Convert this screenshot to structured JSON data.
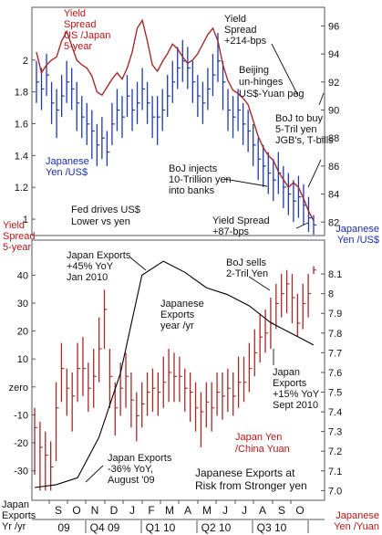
{
  "colors": {
    "background": "#ffffff",
    "frame": "#555555",
    "red_series": "#a52a2a",
    "blue_series": "#1f3aa8",
    "black_series": "#000000",
    "red_label": "#b01818",
    "blue_label": "#1a2ea0",
    "annotation": "#111111"
  },
  "chart_data": [
    {
      "type": "line",
      "panel": "top",
      "left_axis": {
        "ticks": [
          "1",
          "1.2",
          "1.4",
          "1.6",
          "1.8",
          "2"
        ],
        "ylim": [
          0.92,
          2.32
        ]
      },
      "right_axis": {
        "ticks": [
          "82",
          "84",
          "86",
          "88",
          "90",
          "92",
          "94",
          "96"
        ],
        "ylim": [
          81.3,
          97.2
        ]
      },
      "left_axis_label": [
        "Yield",
        "Spread",
        "5-year"
      ],
      "right_axis_label": [
        "Japanese",
        "Yen /US$"
      ],
      "series": [
        {
          "name": "Yield Spread US /Japan 5-year",
          "axis": "left",
          "color_key": "red_series",
          "x": [
            0,
            1,
            2,
            3,
            4,
            5,
            6,
            7,
            8,
            9,
            10,
            11,
            12,
            13,
            14,
            15,
            16,
            17,
            18,
            19,
            20,
            21,
            22,
            23,
            24,
            25,
            26,
            27,
            28,
            29,
            30,
            31,
            32,
            33,
            34,
            35,
            36,
            37,
            38,
            39,
            40,
            41,
            42,
            43,
            44,
            45,
            46,
            47,
            48,
            49,
            50,
            51,
            52,
            53,
            54,
            55
          ],
          "values": [
            2.05,
            1.92,
            1.97,
            2.0,
            2.02,
            2.12,
            2.18,
            2.09,
            2.0,
            1.97,
            1.95,
            1.9,
            1.8,
            1.78,
            1.83,
            1.88,
            1.92,
            1.88,
            1.95,
            2.05,
            2.2,
            2.25,
            2.12,
            1.97,
            1.93,
            1.99,
            2.04,
            2.1,
            2.07,
            2.02,
            1.98,
            2.0,
            2.04,
            2.1,
            2.16,
            2.2,
            2.12,
            1.97,
            1.87,
            1.81,
            1.79,
            1.76,
            1.72,
            1.62,
            1.52,
            1.45,
            1.4,
            1.37,
            1.3,
            1.25,
            1.2,
            1.23,
            1.2,
            1.13,
            1.05,
            0.99
          ]
        },
        {
          "name": "Japanese Yen /US$",
          "axis": "right",
          "color_key": "blue_series",
          "style": "hlc_bars",
          "x": [
            0,
            1,
            2,
            3,
            4,
            5,
            6,
            7,
            8,
            9,
            10,
            11,
            12,
            13,
            14,
            15,
            16,
            17,
            18,
            19,
            20,
            21,
            22,
            23,
            24,
            25,
            26,
            27,
            28,
            29,
            30,
            31,
            32,
            33,
            34,
            35,
            36,
            37,
            38,
            39,
            40,
            41,
            42,
            43,
            44,
            45,
            46,
            47,
            48,
            49,
            50,
            51,
            52,
            53,
            54,
            55
          ],
          "close": [
            92,
            91.5,
            92.5,
            90.5,
            90,
            91,
            92,
            91.5,
            90.5,
            89.5,
            89,
            88.5,
            87.5,
            88,
            87,
            89,
            90,
            89.5,
            91,
            90,
            90.5,
            91.5,
            90.5,
            89.5,
            89.5,
            90,
            91,
            92,
            93,
            93.5,
            93,
            92,
            91,
            90.5,
            91.5,
            92.5,
            93.5,
            92,
            90,
            89.5,
            90,
            89,
            88.5,
            87.5,
            86.5,
            86,
            85.5,
            85,
            85.5,
            84.5,
            84,
            83.5,
            83.8,
            83.2,
            82.3,
            81.8
          ],
          "low": [
            90.5,
            90,
            91,
            89,
            88,
            89.5,
            90.5,
            90,
            88.5,
            88,
            87.5,
            86.5,
            86,
            86.5,
            86,
            87.5,
            88.5,
            88,
            89.5,
            88.5,
            89,
            90,
            89,
            88,
            87.5,
            88.5,
            89.5,
            90.5,
            91.5,
            92,
            91.5,
            90.5,
            89.5,
            89,
            90,
            91,
            92,
            90,
            88.5,
            88,
            88.5,
            87.5,
            87,
            86,
            85,
            84.5,
            84,
            83.5,
            84,
            83,
            82.5,
            82,
            82.3,
            81.8,
            81.3,
            81.1
          ],
          "high": [
            93.5,
            93,
            94,
            92,
            91.5,
            92.5,
            93.5,
            93,
            92,
            91,
            90.5,
            90,
            89,
            89.5,
            88.5,
            90.5,
            91.5,
            91,
            92.5,
            91.5,
            92,
            93,
            92,
            91,
            91,
            91.5,
            92.5,
            93.5,
            94.5,
            95,
            94.5,
            93.5,
            92.5,
            92,
            93,
            94,
            95.5,
            93.5,
            91.5,
            91,
            91.5,
            90.5,
            90,
            89,
            88,
            87.5,
            87,
            86.5,
            87,
            86,
            85.5,
            85,
            85.3,
            84.7,
            83.8,
            82.5
          ]
        }
      ],
      "annotations": [
        [
          "Yield",
          "Spread",
          "US /Japan",
          "5-year"
        ],
        [
          "Yield",
          "Spread",
          "+214-bps"
        ],
        [
          "Beijing",
          "un-hinges",
          "US$-Yuan peg"
        ],
        [
          "BoJ to buy",
          "5-Tril yen",
          "JGB's, T-bills"
        ],
        [
          "BoJ injects",
          "10-Trillion yen",
          "into banks"
        ],
        [
          "Japanese",
          "Yen /US$"
        ],
        [
          "Fed drives US$",
          "Lower vs yen"
        ],
        [
          "Yield Spread",
          "+87-bps"
        ]
      ]
    },
    {
      "type": "line",
      "panel": "bottom",
      "left_axis": {
        "ticks": [
          "-30",
          "-20",
          "-10",
          "zero",
          "10",
          "20",
          "30",
          "40"
        ],
        "ylim": [
          -36,
          46
        ]
      },
      "right_axis": {
        "ticks": [
          "7.0",
          "7.1",
          "7.2",
          "7.3",
          "7.4",
          "7.5",
          "7.6",
          "7.7",
          "7.8",
          "7.9",
          "8",
          "8.1"
        ],
        "ylim": [
          6.96,
          8.17
        ]
      },
      "left_axis_label": [
        "Japan",
        "Exports",
        "Yr /yr"
      ],
      "right_axis_label": [
        "Japanese",
        "Yen /Yuan"
      ],
      "x_ticks": [
        "S",
        "O",
        "N",
        "D",
        "J",
        "F",
        "M",
        "A",
        "M",
        "J",
        "J",
        "A",
        "S",
        "O"
      ],
      "x_groups": [
        "09",
        "Q4 09",
        "Q1 10",
        "Q2 10",
        "Q3 10"
      ],
      "series": [
        {
          "name": "Japanese Exports year /yr",
          "axis": "left",
          "color_key": "black_series",
          "x": [
            0,
            1,
            2,
            3,
            4,
            5,
            6,
            7,
            8,
            9,
            10,
            11,
            12,
            13
          ],
          "values": [
            -36,
            -35,
            -32.5,
            -18,
            5,
            40,
            45,
            41,
            35.5,
            33,
            29,
            23,
            19,
            15
          ]
        },
        {
          "name": "Japan Yen /China Yuan",
          "axis": "right",
          "color_key": "red_series",
          "style": "hlc_bars",
          "x": [
            0,
            0.25,
            0.5,
            0.75,
            1,
            1.25,
            1.5,
            1.75,
            2,
            2.25,
            2.5,
            2.75,
            3,
            3.25,
            3.5,
            3.75,
            4,
            4.25,
            4.5,
            4.75,
            5,
            5.25,
            5.5,
            5.75,
            6,
            6.25,
            6.5,
            6.75,
            7,
            7.25,
            7.5,
            7.75,
            8,
            8.25,
            8.5,
            8.75,
            9,
            9.25,
            9.5,
            9.75,
            10,
            10.25,
            10.5,
            10.75,
            11,
            11.25,
            11.5,
            11.75,
            12,
            12.25,
            12.5,
            12.75,
            13
          ],
          "close": [
            7.32,
            7.22,
            7.18,
            7.12,
            7.42,
            7.62,
            7.52,
            7.48,
            7.62,
            7.62,
            7.52,
            7.58,
            7.72,
            7.92,
            7.58,
            7.42,
            7.52,
            7.58,
            7.46,
            7.38,
            7.44,
            7.5,
            7.52,
            7.5,
            7.55,
            7.6,
            7.58,
            7.58,
            7.52,
            7.5,
            7.42,
            7.4,
            7.45,
            7.42,
            7.5,
            7.48,
            7.52,
            7.48,
            7.55,
            7.55,
            7.62,
            7.7,
            7.78,
            7.8,
            7.85,
            7.95,
            8.0,
            8.05,
            7.98,
            7.85,
            7.95,
            8.0,
            8.12
          ],
          "low": [
            7.08,
            7.0,
            7.0,
            7.0,
            7.15,
            7.45,
            7.38,
            7.3,
            7.45,
            7.48,
            7.4,
            7.42,
            7.55,
            7.72,
            7.42,
            7.28,
            7.38,
            7.42,
            7.32,
            7.25,
            7.32,
            7.38,
            7.4,
            7.38,
            7.42,
            7.45,
            7.45,
            7.45,
            7.4,
            7.35,
            7.3,
            7.22,
            7.32,
            7.3,
            7.38,
            7.36,
            7.4,
            7.38,
            7.42,
            7.45,
            7.5,
            7.58,
            7.65,
            7.7,
            7.72,
            7.82,
            7.88,
            7.9,
            7.85,
            7.78,
            7.82,
            7.88,
            8.1
          ],
          "high": [
            7.42,
            7.35,
            7.3,
            7.25,
            7.55,
            7.75,
            7.62,
            7.6,
            7.75,
            7.78,
            7.65,
            7.72,
            7.88,
            8.02,
            7.72,
            7.55,
            7.65,
            7.7,
            7.6,
            7.5,
            7.55,
            7.6,
            7.62,
            7.6,
            7.68,
            7.72,
            7.7,
            7.68,
            7.62,
            7.6,
            7.55,
            7.5,
            7.55,
            7.55,
            7.6,
            7.6,
            7.62,
            7.6,
            7.68,
            7.68,
            7.75,
            7.82,
            7.9,
            7.92,
            7.98,
            8.05,
            8.1,
            8.12,
            8.1,
            8.0,
            8.05,
            8.1,
            8.14
          ]
        }
      ],
      "annotations": [
        [
          "Japan Exports",
          "+45% YoY",
          "Jan 2010"
        ],
        [
          "BoJ sells",
          "2-Tril Yen"
        ],
        [
          "Japanese",
          "Exports",
          "year /yr"
        ],
        [
          "Japan",
          "Exports",
          "+15% YoY",
          "Sept 2010"
        ],
        [
          "Japan Yen",
          "/China Yuan"
        ],
        [
          "Japan Exports",
          "-36% YoY,",
          "August '09"
        ],
        [
          "Japanese Exports at",
          "Risk from Stronger yen"
        ]
      ]
    }
  ]
}
